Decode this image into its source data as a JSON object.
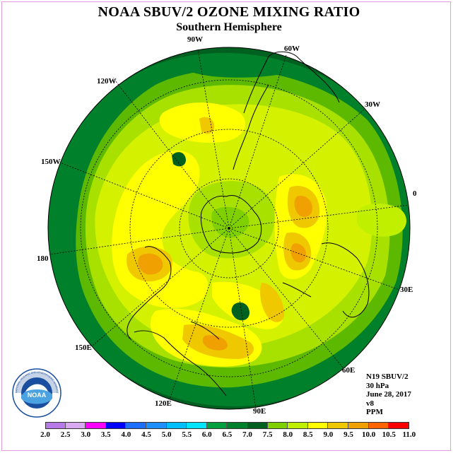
{
  "title": "NOAA SBUV/2 OZONE MIXING RATIO",
  "subtitle": "Southern Hemisphere",
  "longitude_labels": [
    {
      "text": "90W",
      "anchor": "n-top"
    },
    {
      "text": "60W",
      "anchor": "n-right"
    },
    {
      "text": "30W",
      "anchor": "ne"
    },
    {
      "text": "0",
      "anchor": "e"
    },
    {
      "text": "30E",
      "anchor": "se"
    },
    {
      "text": "60E",
      "anchor": "s-right"
    },
    {
      "text": "90E",
      "anchor": "s"
    },
    {
      "text": "120E",
      "anchor": "s-left"
    },
    {
      "text": "150E",
      "anchor": "sw"
    },
    {
      "text": "180",
      "anchor": "w"
    },
    {
      "text": "150W",
      "anchor": "nw"
    },
    {
      "text": "120W",
      "anchor": "n-left"
    }
  ],
  "info": {
    "satellite": "N19 SBUV/2",
    "level": "30 hPa",
    "date": "June 28, 2017",
    "version": "v8",
    "units": "PPM"
  },
  "colorbar": {
    "ticks": [
      "2.0",
      "2.5",
      "3.0",
      "3.5",
      "4.0",
      "4.5",
      "5.0",
      "5.5",
      "6.0",
      "6.5",
      "7.0",
      "7.5",
      "8.0",
      "8.5",
      "9.0",
      "9.5",
      "10.0",
      "10.5",
      "11.0"
    ],
    "colors": [
      "#b77ae6",
      "#d8a8f0",
      "#ff00ff",
      "#0000ff",
      "#1e6fff",
      "#1e90ff",
      "#00bfff",
      "#00e5ff",
      "#00a040",
      "#00802a",
      "#006020",
      "#80d000",
      "#c0f000",
      "#ffff00",
      "#f0c800",
      "#f0a000",
      "#ff6400",
      "#ff0000",
      "#8b5a2b"
    ]
  },
  "logo": {
    "text": "NOAA",
    "ring_text": "NATIONAL OCEANIC AND ATMOSPHERIC ADMINISTRATION · U.S. DEPARTMENT OF COMMERCE"
  }
}
